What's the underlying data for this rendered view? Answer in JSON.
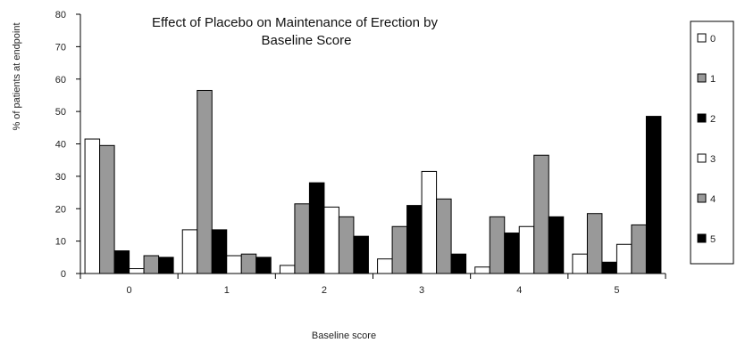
{
  "chart_data": {
    "type": "bar",
    "title_lines": [
      "Effect of Placebo on Maintenance of Erection by",
      "Baseline Score"
    ],
    "xlabel": "Baseline score",
    "ylabel": "% of patients at endpoint",
    "ylim": [
      0,
      80
    ],
    "yticks": [
      "0",
      "10",
      "20",
      "30",
      "40",
      "50",
      "60",
      "70",
      "80"
    ],
    "categories": [
      "0",
      "1",
      "2",
      "3",
      "4",
      "5"
    ],
    "series": [
      {
        "name": "0",
        "color": "#ffffff",
        "values": [
          41.5,
          13.5,
          2.5,
          4.5,
          2,
          6
        ]
      },
      {
        "name": "1",
        "color": "#999999",
        "values": [
          39.5,
          56.5,
          21.5,
          14.5,
          17.5,
          18.5
        ]
      },
      {
        "name": "2",
        "color": "#000000",
        "values": [
          7,
          13.5,
          28,
          21,
          12.5,
          3.5
        ]
      },
      {
        "name": "3",
        "color": "#ffffff",
        "values": [
          1.5,
          5.5,
          20.5,
          31.5,
          14.5,
          9
        ]
      },
      {
        "name": "4",
        "color": "#999999",
        "values": [
          5.5,
          6,
          17.5,
          23,
          36.5,
          15
        ]
      },
      {
        "name": "5",
        "color": "#000000",
        "values": [
          5,
          5,
          11.5,
          6,
          17.5,
          48.5
        ]
      }
    ],
    "grid": false,
    "legend_position": "right"
  }
}
